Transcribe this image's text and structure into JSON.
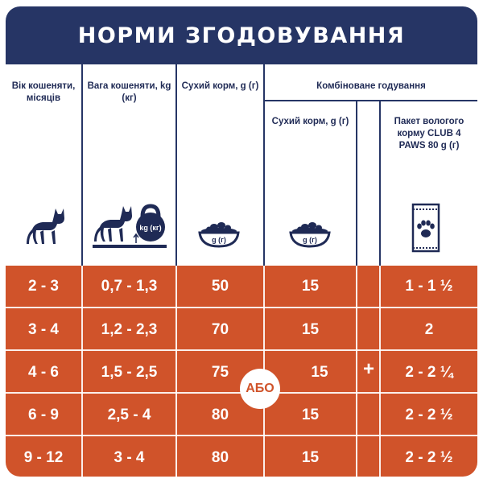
{
  "title": "НОРМИ ЗГОДОВУВАННЯ",
  "headers": {
    "age": "Вік кошеняти, місяців",
    "weight": "Вага кошеняти, kg (кг)",
    "dry": "Сухий корм, g (г)",
    "combined": "Комбіноване годування",
    "combined_dry": "Сухий корм, g (г)",
    "wet": "Пакет вологого корму CLUB 4 PAWS 80 g (г)"
  },
  "icons": {
    "age": "cat-icon",
    "weight": "cat-on-scale-with-kettlebell-icon",
    "kettlebell_label": "kg (кг)",
    "dry": "food-bowl-icon",
    "bowl_label": "g (г)",
    "combined_dry": "food-bowl-icon",
    "wet": "wet-food-pouch-paw-icon"
  },
  "separators": {
    "or": "АБО",
    "plus": "+"
  },
  "rows": [
    {
      "age": "2 - 3",
      "weight": "0,7 - 1,3",
      "dry": "50",
      "combined_dry": "15",
      "wet": "1 - 1 ½"
    },
    {
      "age": "3 - 4",
      "weight": "1,2 - 2,3",
      "dry": "70",
      "combined_dry": "15",
      "wet": "2"
    },
    {
      "age": "4 - 6",
      "weight": "1,5 - 2,5",
      "dry": "75",
      "combined_dry": "15",
      "wet": "2 - 2 ¼"
    },
    {
      "age": "6 - 9",
      "weight": "2,5 - 4",
      "dry": "80",
      "combined_dry": "15",
      "wet": "2 - 2 ½"
    },
    {
      "age": "9 - 12",
      "weight": "3 - 4",
      "dry": "80",
      "combined_dry": "15",
      "wet": "2 - 2 ½"
    }
  ],
  "colors": {
    "navy": "#263565",
    "orange": "#d0532a",
    "white": "#ffffff"
  }
}
